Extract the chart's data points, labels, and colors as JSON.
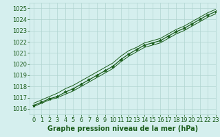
{
  "xlabel": "Graphe pression niveau de la mer (hPa)",
  "ylim": [
    1015.5,
    1025.5
  ],
  "xlim": [
    -0.5,
    23
  ],
  "yticks": [
    1016,
    1017,
    1018,
    1019,
    1020,
    1021,
    1022,
    1023,
    1024,
    1025
  ],
  "xticks": [
    0,
    1,
    2,
    3,
    4,
    5,
    6,
    7,
    8,
    9,
    10,
    11,
    12,
    13,
    14,
    15,
    16,
    17,
    18,
    19,
    20,
    21,
    22,
    23
  ],
  "background_color": "#d5efee",
  "grid_color": "#b0d4d0",
  "line_color": "#1a5c1a",
  "marker_color": "#1a5c1a",
  "x": [
    0,
    1,
    2,
    3,
    4,
    5,
    6,
    7,
    8,
    9,
    10,
    11,
    12,
    13,
    14,
    15,
    16,
    17,
    18,
    19,
    20,
    21,
    22,
    23
  ],
  "y_main": [
    1016.3,
    1016.6,
    1016.9,
    1017.1,
    1017.5,
    1017.8,
    1018.2,
    1018.6,
    1019.0,
    1019.4,
    1019.8,
    1020.4,
    1020.9,
    1021.3,
    1021.7,
    1021.9,
    1022.1,
    1022.5,
    1022.9,
    1023.2,
    1023.6,
    1024.0,
    1024.4,
    1024.7
  ],
  "y_upper": [
    1016.5,
    1016.8,
    1017.1,
    1017.4,
    1017.8,
    1018.1,
    1018.5,
    1018.9,
    1019.3,
    1019.7,
    1020.1,
    1020.7,
    1021.2,
    1021.5,
    1021.9,
    1022.1,
    1022.3,
    1022.7,
    1023.1,
    1023.4,
    1023.8,
    1024.2,
    1024.6,
    1024.9
  ],
  "y_lower": [
    1016.2,
    1016.5,
    1016.8,
    1017.0,
    1017.3,
    1017.6,
    1018.0,
    1018.4,
    1018.8,
    1019.2,
    1019.6,
    1020.2,
    1020.7,
    1021.1,
    1021.5,
    1021.7,
    1021.9,
    1022.3,
    1022.7,
    1023.0,
    1023.4,
    1023.8,
    1024.2,
    1024.5
  ],
  "tick_fontsize": 6.0,
  "label_fontsize": 7.0,
  "text_color": "#1a5c1a"
}
